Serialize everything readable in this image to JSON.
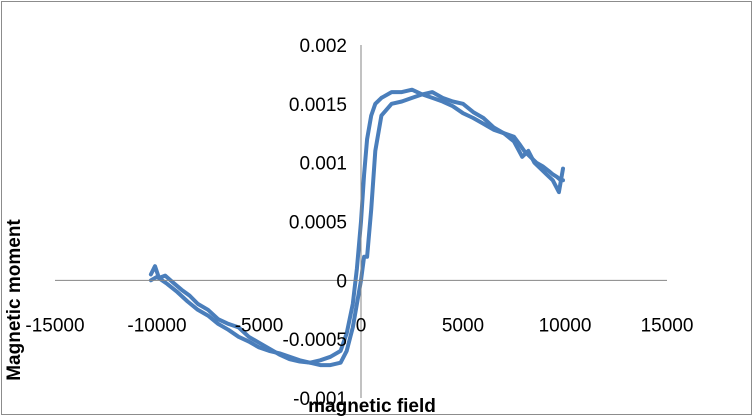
{
  "chart_data": {
    "type": "line",
    "title": "",
    "xlabel": "magnetic field",
    "ylabel": "Magnetic moment",
    "xlim": [
      -15000,
      15000
    ],
    "ylim": [
      -0.001,
      0.002
    ],
    "x_ticks": [
      "-15000",
      "-10000",
      "-5000",
      "0",
      "5000",
      "10000",
      "15000"
    ],
    "y_ticks": [
      "0.002",
      "0.0015",
      "0.001",
      "0.0005",
      "0",
      "-0.0005",
      "-0.001"
    ],
    "grid": false,
    "legend": "none",
    "series_color": "#4a7ebb",
    "series": [
      {
        "values_x": [
          -10300,
          -10100,
          -9900,
          -9600,
          -9200,
          -8800,
          -8400,
          -8000,
          -7500,
          -7000,
          -6500,
          -6000,
          -5500,
          -5000,
          -4500,
          -4000,
          -3500,
          -3000,
          -2500,
          -2000,
          -1500,
          -1000,
          -700,
          -400,
          -200,
          0,
          150,
          300,
          500,
          700,
          1000,
          1500,
          2000,
          2500,
          3000,
          3500,
          4000,
          4500,
          5000,
          5500,
          6000,
          6500,
          7000,
          7500,
          7800,
          8000,
          8300,
          8600,
          8900,
          9200,
          9400,
          9600,
          9800,
          9900
        ],
        "values_y": [
          5e-05,
          0.00012,
          2e-05,
          4e-05,
          -2e-05,
          -8e-05,
          -0.00013,
          -0.0002,
          -0.00025,
          -0.00033,
          -0.00037,
          -0.0004,
          -0.00048,
          -0.00053,
          -0.00058,
          -0.00063,
          -0.00067,
          -0.00069,
          -0.0007,
          -0.00068,
          -0.00065,
          -0.0006,
          -0.00045,
          -0.0002,
          0.0001,
          0.0005,
          0.0009,
          0.0012,
          0.0014,
          0.0015,
          0.00155,
          0.0016,
          0.0016,
          0.00162,
          0.00158,
          0.00155,
          0.00152,
          0.00148,
          0.00142,
          0.00138,
          0.00133,
          0.00128,
          0.00125,
          0.00122,
          0.00115,
          0.0011,
          0.00105,
          0.001,
          0.00097,
          0.00093,
          0.0009,
          0.00088,
          0.00085,
          0.00085
        ]
      },
      {
        "values_x": [
          9900,
          9700,
          9400,
          9100,
          8800,
          8500,
          8200,
          7900,
          7500,
          7000,
          6500,
          6000,
          5500,
          5000,
          4500,
          4000,
          3500,
          3000,
          2500,
          2000,
          1500,
          1000,
          700,
          500,
          300,
          150,
          0,
          -200,
          -400,
          -700,
          -1000,
          -1500,
          -2000,
          -2500,
          -3000,
          -3500,
          -4000,
          -4500,
          -5000,
          -5500,
          -6000,
          -6500,
          -7000,
          -7500,
          -8000,
          -8500,
          -9000,
          -9500,
          -10000,
          -10300
        ],
        "values_y": [
          0.00095,
          0.00075,
          0.00085,
          0.0009,
          0.00095,
          0.001,
          0.0011,
          0.00105,
          0.00118,
          0.00125,
          0.0013,
          0.00138,
          0.00143,
          0.0015,
          0.00152,
          0.00155,
          0.0016,
          0.00158,
          0.00155,
          0.00152,
          0.0015,
          0.0014,
          0.0011,
          0.0006,
          0.0002,
          0.0002,
          0.0,
          -0.0002,
          -0.0004,
          -0.0006,
          -0.0007,
          -0.00072,
          -0.00072,
          -0.0007,
          -0.00068,
          -0.00065,
          -0.00062,
          -0.0006,
          -0.00057,
          -0.00052,
          -0.00048,
          -0.00042,
          -0.00037,
          -0.0003,
          -0.00025,
          -0.00018,
          -0.0001,
          -3e-05,
          3e-05,
          0.0
        ]
      }
    ]
  }
}
